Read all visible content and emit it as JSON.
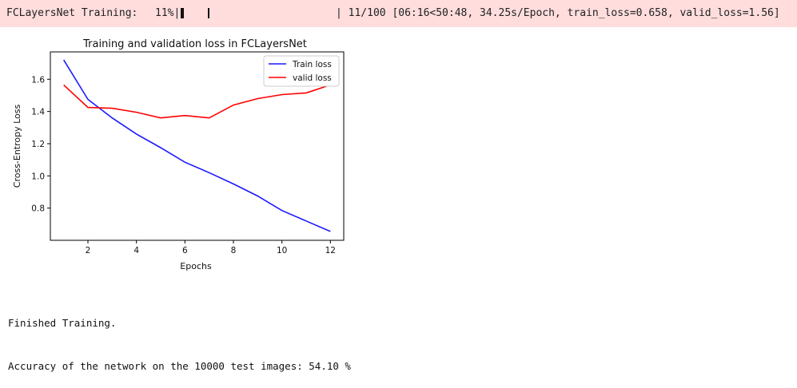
{
  "progress": {
    "label": "FCLayersNet Training:",
    "percent_text": "11%|",
    "status_text": "| 11/100 [06:16<50:48, 34.25s/Epoch, train_loss=0.658, valid_loss=1.56]",
    "fraction": 0.11
  },
  "chart_data": {
    "type": "line",
    "title": "Training and validation loss in FCLayersNet",
    "xlabel": "Epochs",
    "ylabel": "Cross-Entropy Loss",
    "xlim": [
      0.45,
      12.55
    ],
    "ylim": [
      0.6,
      1.77
    ],
    "xticks": [
      2,
      4,
      6,
      8,
      10,
      12
    ],
    "yticks": [
      0.8,
      1.0,
      1.2,
      1.4,
      1.6
    ],
    "x": [
      1,
      2,
      3,
      4,
      5,
      6,
      7,
      8,
      9,
      10,
      11,
      12
    ],
    "series": [
      {
        "name": "Train loss",
        "color": "#1a1aff",
        "values": [
          1.72,
          1.475,
          1.36,
          1.26,
          1.175,
          1.085,
          1.02,
          0.95,
          0.875,
          0.785,
          0.72,
          0.655
        ]
      },
      {
        "name": "valid loss",
        "color": "#ff0000",
        "values": [
          1.565,
          1.425,
          1.42,
          1.395,
          1.36,
          1.375,
          1.36,
          1.44,
          1.48,
          1.505,
          1.515,
          1.565
        ]
      }
    ],
    "legend": "top-right",
    "grid": false
  },
  "output": {
    "line1": "Finished Training.",
    "line2": "Accuracy of the network on the 10000 test images: 54.10 %"
  }
}
